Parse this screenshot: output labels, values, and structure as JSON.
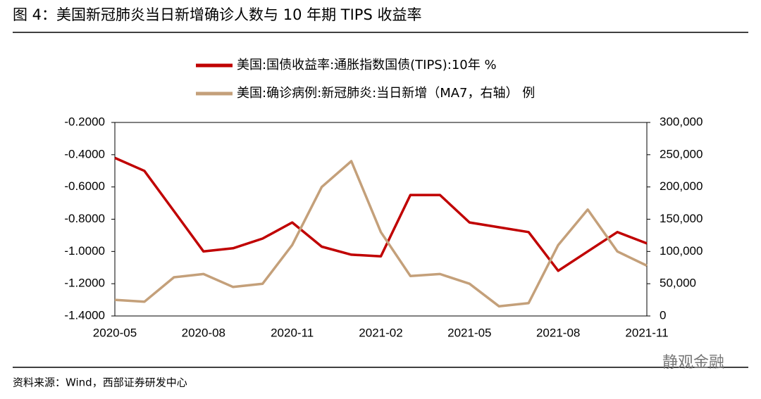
{
  "chart_data": {
    "type": "line",
    "title": "图 4：美国新冠肺炎当日新增确诊人数与 10 年期 TIPS 收益率",
    "source": "资料来源：Wind，西部证券研发中心",
    "watermark": "静观金融",
    "x": [
      "2020-05",
      null,
      null,
      "2020-08",
      null,
      null,
      "2020-11",
      null,
      null,
      "2021-02",
      null,
      null,
      "2021-05",
      null,
      null,
      "2021-08",
      null,
      null,
      "2021-11"
    ],
    "series": [
      {
        "name": "美国:国债收益率:通胀指数国债(TIPS):10年 %",
        "color": "#c00000",
        "values": [
          -0.42,
          -0.5,
          -0.75,
          -1.0,
          -0.98,
          -0.92,
          -0.82,
          -0.97,
          -1.02,
          -1.03,
          -0.65,
          -0.65,
          -0.82,
          -0.85,
          -0.88,
          -1.12,
          -1.0,
          -0.88,
          -0.95
        ]
      },
      {
        "name": "美国:确诊病例:新冠肺炎:当日新增（MA7，右轴） 例",
        "color": "#c4a07a",
        "axis": "y2",
        "values": [
          25000,
          22000,
          60000,
          65000,
          45000,
          50000,
          110000,
          200000,
          240000,
          130000,
          62000,
          65000,
          50000,
          15000,
          20000,
          110000,
          165000,
          100000,
          78000
        ]
      }
    ],
    "ylim": [
      -1.4,
      -0.2
    ],
    "yticks": [
      {
        "value": -0.2,
        "label": "-0.2000"
      },
      {
        "value": -0.4,
        "label": "-0.4000"
      },
      {
        "value": -0.6,
        "label": "-0.6000"
      },
      {
        "value": -0.8,
        "label": "-0.8000"
      },
      {
        "value": -1.0,
        "label": "-1.0000"
      },
      {
        "value": -1.2,
        "label": "-1.2000"
      },
      {
        "value": -1.4,
        "label": "-1.4000"
      }
    ],
    "y2lim": [
      0,
      300000
    ],
    "y2ticks": [
      0,
      {
        "value": 50000,
        "label": "50,000"
      },
      {
        "value": 100000,
        "label": "100,000"
      },
      {
        "value": 150000,
        "label": "150,000"
      },
      {
        "value": 200000,
        "label": "200,000"
      },
      {
        "value": 250000,
        "label": "250,000"
      },
      {
        "value": 300000,
        "label": "300,000"
      }
    ]
  }
}
